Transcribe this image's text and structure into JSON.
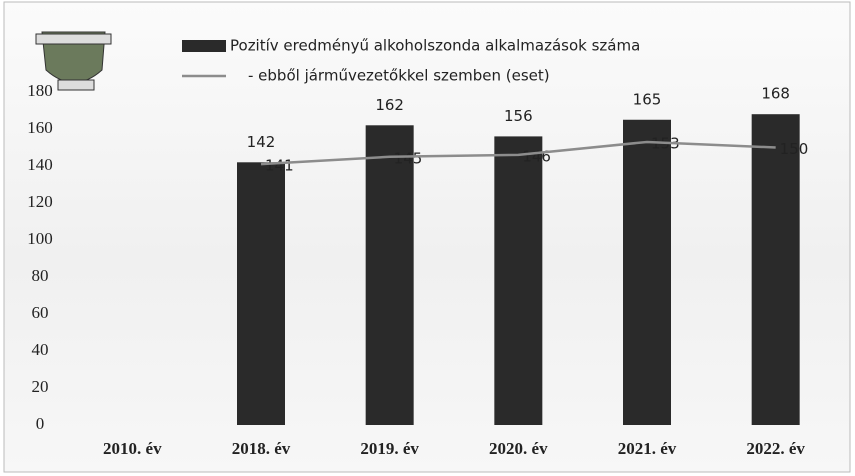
{
  "chart_data": {
    "type": "bar",
    "categories": [
      "2010. év",
      "2018. év",
      "2019. év",
      "2020. év",
      "2021. év",
      "2022. év"
    ],
    "series": [
      {
        "name": "Pozitív eredményű alkoholszonda alkalmazások száma",
        "type": "bar",
        "color": "#2a2a2a",
        "values": [
          null,
          142,
          162,
          156,
          165,
          168
        ]
      },
      {
        "name": "- ebből járművezetőkkel szemben (eset)",
        "type": "line",
        "color": "#8c8c8c",
        "values": [
          null,
          141,
          145,
          146,
          153,
          150
        ]
      }
    ],
    "ylim": [
      0,
      180
    ],
    "yticks": [
      0,
      20,
      40,
      60,
      80,
      100,
      120,
      140,
      160,
      180
    ],
    "grid": false,
    "legend": "top"
  }
}
